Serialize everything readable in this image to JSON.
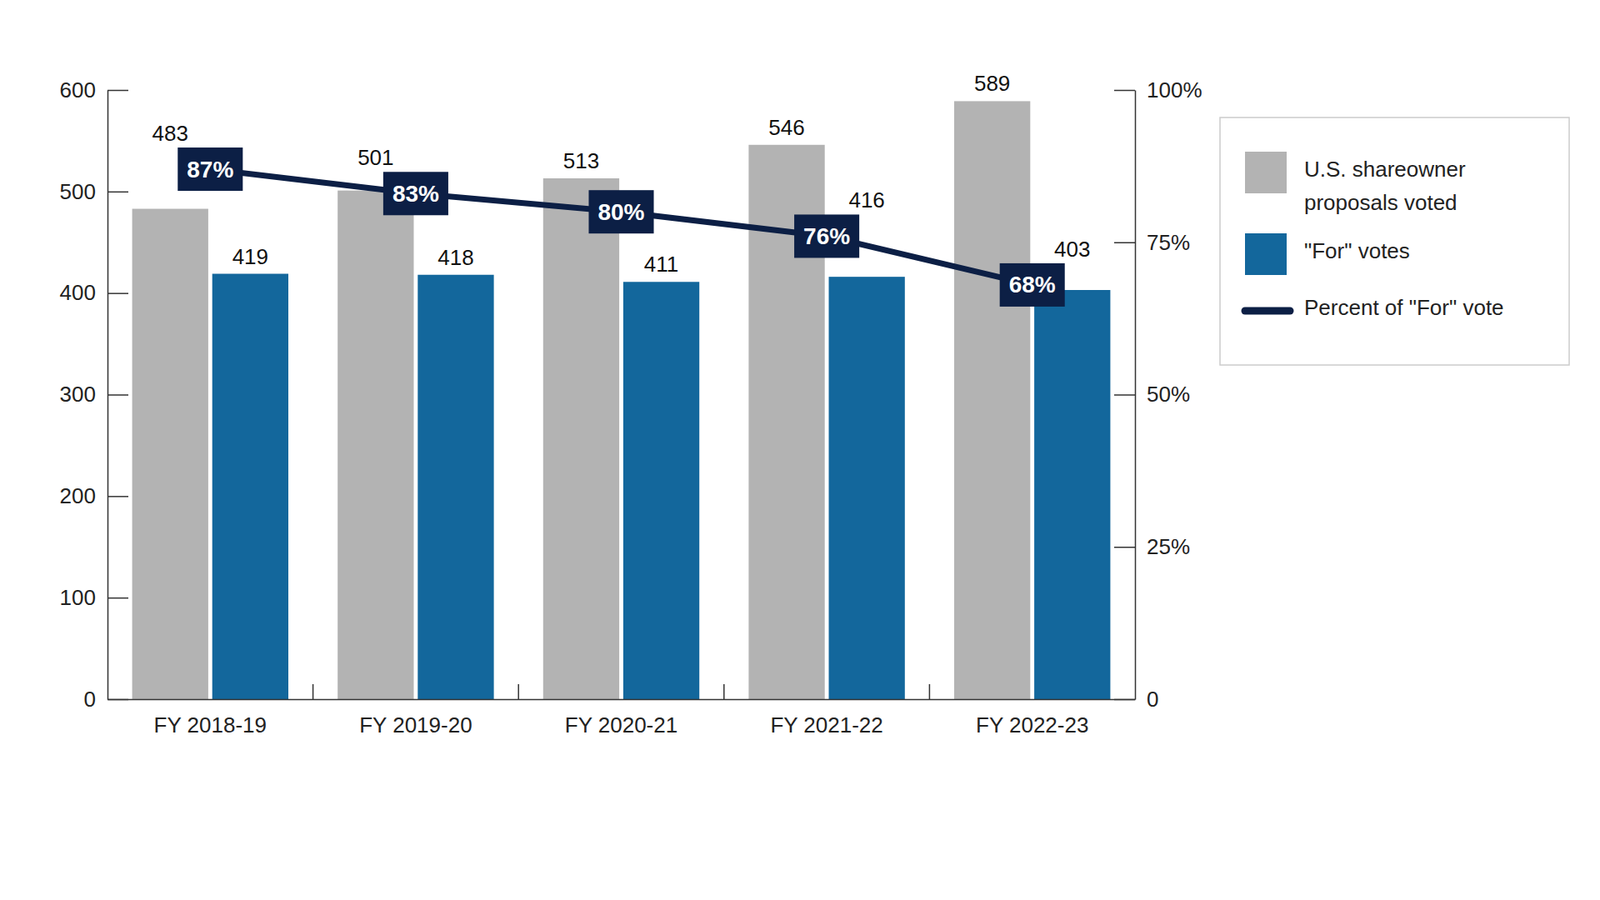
{
  "chart_data": {
    "type": "bar",
    "categories": [
      "FY 2018-19",
      "FY 2019-20",
      "FY 2020-21",
      "FY 2021-22",
      "FY 2022-23"
    ],
    "series": [
      {
        "name": "U.S. shareowner proposals voted",
        "type": "bar",
        "color": "#b3b3b3",
        "values": [
          483,
          501,
          513,
          546,
          589
        ]
      },
      {
        "name": "\"For\" votes",
        "type": "bar",
        "color": "#13679c",
        "values": [
          419,
          418,
          411,
          416,
          403
        ]
      },
      {
        "name": "Percent of \"For\" vote",
        "type": "line",
        "axis": "y2",
        "color": "#0c1f45",
        "values": [
          87,
          83,
          80,
          76,
          68
        ],
        "value_labels": [
          "87%",
          "83%",
          "80%",
          "76%",
          "68%"
        ]
      }
    ],
    "ylim": [
      0,
      600
    ],
    "yticks": [
      0,
      100,
      200,
      300,
      400,
      500,
      600
    ],
    "y2lim": [
      0,
      100
    ],
    "y2ticks": [
      0,
      {
        "value": 25,
        "label": "25%"
      },
      {
        "value": 50,
        "label": "50%"
      },
      {
        "value": 75,
        "label": "75%"
      },
      {
        "value": 100,
        "label": "100%"
      }
    ],
    "grid": false,
    "legend": "right",
    "data_labels": true
  }
}
